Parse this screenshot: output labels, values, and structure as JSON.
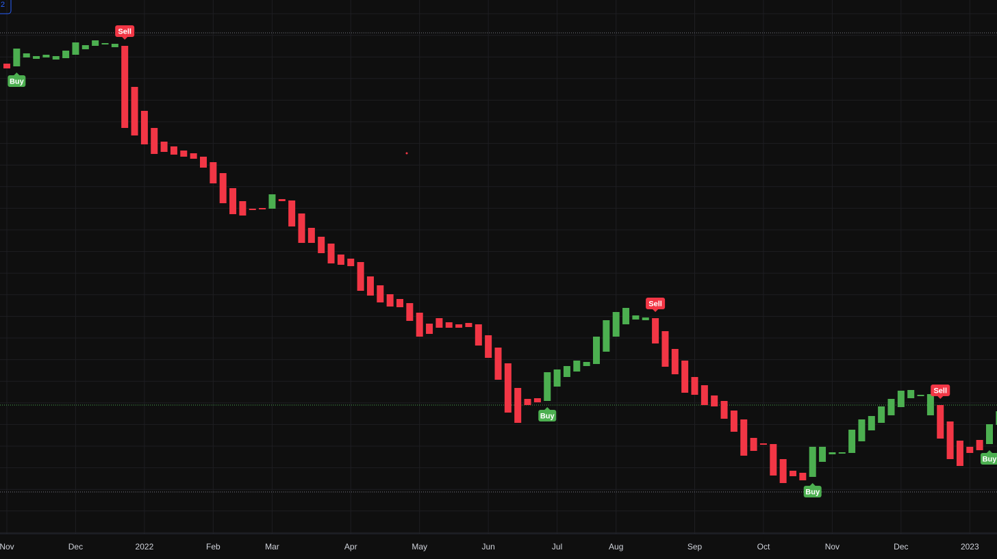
{
  "badge": "2",
  "chart_data": {
    "type": "candlestick",
    "categories": [
      "Nov",
      null,
      null,
      null,
      null,
      null,
      null,
      "Dec",
      null,
      null,
      null,
      null,
      null,
      null,
      "2022",
      null,
      null,
      null,
      null,
      null,
      null,
      "Feb",
      null,
      null,
      null,
      null,
      null,
      "Mar",
      null,
      null,
      null,
      null,
      null,
      null,
      null,
      "Apr",
      null,
      null,
      null,
      null,
      null,
      null,
      "May",
      null,
      null,
      null,
      null,
      null,
      null,
      "Jun",
      null,
      null,
      null,
      null,
      null,
      null,
      "Jul",
      null,
      null,
      null,
      null,
      null,
      "Aug",
      null,
      null,
      null,
      null,
      null,
      null,
      null,
      "Sep",
      null,
      null,
      null,
      null,
      null,
      null,
      "Oct",
      null,
      null,
      null,
      null,
      null,
      null,
      "Nov",
      null,
      null,
      null,
      null,
      null,
      null,
      "Dec",
      null,
      null,
      null,
      null,
      null,
      null,
      "2023",
      null,
      null,
      null
    ],
    "open": [
      707,
      703,
      716,
      714,
      716,
      713,
      715,
      720,
      728,
      733,
      735,
      731,
      733,
      673,
      638,
      613,
      593,
      586,
      580,
      576,
      571,
      563,
      547,
      525,
      506,
      495,
      496,
      495,
      509,
      507,
      488,
      467,
      454,
      444,
      428,
      422,
      417,
      396,
      383,
      370,
      363,
      357,
      343,
      327,
      335,
      329,
      326,
      328,
      326,
      310,
      292,
      269,
      233,
      217,
      218,
      214,
      235,
      249,
      257,
      265,
      268,
      286,
      308,
      326,
      333,
      332,
      335,
      316,
      290,
      273,
      249,
      237,
      222,
      214,
      200,
      187,
      160,
      152,
      151,
      129,
      112,
      109,
      103,
      125,
      136,
      137,
      138,
      155,
      171,
      182,
      193,
      205,
      218,
      221,
      193,
      208,
      184,
      156,
      147,
      157,
      151,
      179
    ],
    "close": [
      700,
      729,
      722,
      718,
      720,
      718,
      726,
      738,
      734,
      741,
      737,
      736,
      613,
      602,
      589,
      575,
      578,
      574,
      571,
      568,
      555,
      532,
      503,
      487,
      485,
      493,
      494,
      516,
      506,
      469,
      445,
      445,
      430,
      415,
      413,
      411,
      375,
      368,
      358,
      352,
      351,
      331,
      308,
      312,
      321,
      321,
      321,
      322,
      295,
      277,
      245,
      197,
      182,
      208,
      212,
      256,
      260,
      265,
      273,
      271,
      308,
      332,
      344,
      350,
      339,
      336,
      298,
      264,
      253,
      226,
      223,
      208,
      206,
      188,
      169,
      134,
      141,
      150,
      105,
      94,
      104,
      98,
      147,
      147,
      139,
      139,
      172,
      187,
      192,
      206,
      217,
      229,
      230,
      223,
      224,
      159,
      129,
      119,
      138,
      142,
      180,
      199
    ],
    "up_color": "#4caf50",
    "down_color": "#f23645",
    "ylim": [
      20,
      800
    ],
    "signals": [
      {
        "label": "Buy",
        "index": 1
      },
      {
        "label": "Sell",
        "index": 12
      },
      {
        "label": "Buy",
        "index": 55
      },
      {
        "label": "Sell",
        "index": 66
      },
      {
        "label": "Buy",
        "index": 82
      },
      {
        "label": "Sell",
        "index": 95
      },
      {
        "label": "Buy",
        "index": 100
      }
    ],
    "levels": [
      {
        "value": 752,
        "color": "#787b86"
      },
      {
        "value": 208,
        "color": "#4caf50"
      },
      {
        "value": 81,
        "color": "#787b86"
      }
    ],
    "grid": true
  }
}
